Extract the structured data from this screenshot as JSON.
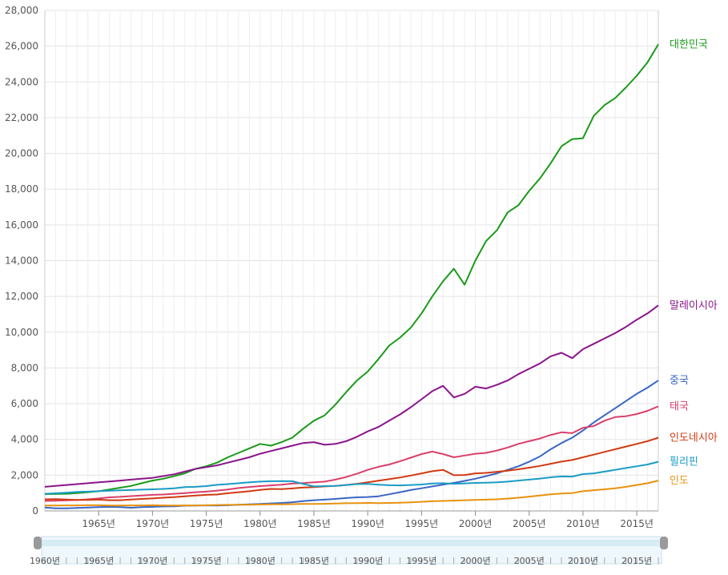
{
  "chart_data": {
    "type": "line",
    "title": "",
    "xlabel": "",
    "ylabel": "",
    "ylim": [
      0,
      28000
    ],
    "yticks": [
      0,
      2000,
      4000,
      6000,
      8000,
      10000,
      12000,
      14000,
      16000,
      18000,
      20000,
      22000,
      24000,
      26000,
      28000
    ],
    "ytick_labels": [
      "0",
      "2,000",
      "4,000",
      "6,000",
      "8,000",
      "10,000",
      "12,000",
      "14,000",
      "16,000",
      "18,000",
      "20,000",
      "22,000",
      "24,000",
      "26,000",
      "28,000"
    ],
    "xlim": [
      1960,
      2017
    ],
    "xticks": [
      1965,
      1970,
      1975,
      1980,
      1985,
      1990,
      1995,
      2000,
      2005,
      2010,
      2015
    ],
    "xtick_labels": [
      "1965년",
      "1970년",
      "1975년",
      "1980년",
      "1985년",
      "1990년",
      "1995년",
      "2000년",
      "2005년",
      "2010년",
      "2015년"
    ],
    "grid": true,
    "legend": "inline-right",
    "range_selector": {
      "start_label": "1960년",
      "tick_labels": [
        "1965년",
        "1970년",
        "1975년",
        "1980년",
        "1985년",
        "1990년",
        "1995년",
        "2000년",
        "2005년",
        "2010년",
        "2015년"
      ]
    },
    "x": [
      1960,
      1961,
      1962,
      1963,
      1964,
      1965,
      1966,
      1967,
      1968,
      1969,
      1970,
      1971,
      1972,
      1973,
      1974,
      1975,
      1976,
      1977,
      1978,
      1979,
      1980,
      1981,
      1982,
      1983,
      1984,
      1985,
      1986,
      1987,
      1988,
      1989,
      1990,
      1991,
      1992,
      1993,
      1994,
      1995,
      1996,
      1997,
      1998,
      1999,
      2000,
      2001,
      2002,
      2003,
      2004,
      2005,
      2006,
      2007,
      2008,
      2009,
      2010,
      2011,
      2012,
      2013,
      2014,
      2015,
      2016,
      2017
    ],
    "series": [
      {
        "name": "대한민국",
        "color": "#1a9a1a",
        "values": [
          940,
          950,
          960,
          1000,
          1050,
          1100,
          1200,
          1300,
          1400,
          1550,
          1700,
          1800,
          1950,
          2100,
          2350,
          2500,
          2700,
          3000,
          3250,
          3500,
          3750,
          3650,
          3850,
          4100,
          4600,
          5050,
          5350,
          5950,
          6650,
          7300,
          7800,
          8500,
          9250,
          9700,
          10250,
          11050,
          12000,
          12850,
          13550,
          12650,
          14000,
          15100,
          15700,
          16700,
          17100,
          17900,
          18600,
          19450,
          20400,
          20800,
          20850,
          22100,
          22700,
          23100,
          23700,
          24350,
          25100,
          26100
        ]
      },
      {
        "name": "말레이시아",
        "color": "#8b148b",
        "values": [
          1350,
          1400,
          1450,
          1500,
          1550,
          1600,
          1650,
          1700,
          1750,
          1800,
          1850,
          1950,
          2050,
          2200,
          2350,
          2450,
          2550,
          2700,
          2850,
          3000,
          3200,
          3350,
          3500,
          3650,
          3800,
          3850,
          3700,
          3750,
          3900,
          4150,
          4450,
          4700,
          5050,
          5400,
          5800,
          6250,
          6700,
          7000,
          6350,
          6550,
          6950,
          6850,
          7050,
          7300,
          7650,
          7950,
          8250,
          8650,
          8850,
          8550,
          9050,
          9350,
          9650,
          9950,
          10300,
          10700,
          11050,
          11500
        ]
      },
      {
        "name": "중국",
        "color": "#3a66c4",
        "values": [
          190,
          150,
          150,
          170,
          190,
          210,
          230,
          210,
          180,
          210,
          230,
          250,
          260,
          290,
          300,
          310,
          300,
          320,
          350,
          370,
          390,
          420,
          450,
          490,
          550,
          600,
          630,
          670,
          720,
          760,
          780,
          820,
          930,
          1050,
          1170,
          1270,
          1370,
          1470,
          1570,
          1680,
          1800,
          1950,
          2100,
          2300,
          2500,
          2750,
          3050,
          3450,
          3800,
          4100,
          4500,
          4950,
          5350,
          5750,
          6150,
          6550,
          6900,
          7300
        ]
      },
      {
        "name": "태국",
        "color": "#d9406a",
        "values": [
          560,
          570,
          590,
          610,
          650,
          700,
          760,
          790,
          830,
          860,
          900,
          920,
          960,
          1000,
          1050,
          1080,
          1140,
          1200,
          1280,
          1340,
          1390,
          1430,
          1470,
          1530,
          1560,
          1600,
          1640,
          1750,
          1900,
          2080,
          2300,
          2470,
          2600,
          2780,
          2980,
          3180,
          3320,
          3180,
          3000,
          3100,
          3200,
          3250,
          3380,
          3550,
          3750,
          3900,
          4050,
          4250,
          4400,
          4350,
          4650,
          4750,
          5050,
          5250,
          5300,
          5420,
          5600,
          5850
        ]
      },
      {
        "name": "인도네시아",
        "color": "#d13a12",
        "values": [
          650,
          660,
          640,
          620,
          620,
          630,
          600,
          600,
          640,
          670,
          700,
          740,
          770,
          820,
          860,
          900,
          920,
          990,
          1050,
          1100,
          1180,
          1230,
          1220,
          1260,
          1310,
          1330,
          1370,
          1400,
          1450,
          1520,
          1600,
          1690,
          1780,
          1870,
          1980,
          2100,
          2220,
          2300,
          2000,
          2010,
          2100,
          2130,
          2190,
          2250,
          2330,
          2420,
          2520,
          2640,
          2760,
          2850,
          3000,
          3150,
          3300,
          3450,
          3600,
          3750,
          3900,
          4100
        ]
      },
      {
        "name": "필리핀",
        "color": "#1a9cc4",
        "values": [
          960,
          990,
          1020,
          1060,
          1080,
          1110,
          1130,
          1150,
          1170,
          1190,
          1210,
          1230,
          1270,
          1330,
          1350,
          1390,
          1460,
          1500,
          1550,
          1600,
          1640,
          1660,
          1670,
          1660,
          1510,
          1370,
          1390,
          1400,
          1450,
          1500,
          1510,
          1470,
          1440,
          1430,
          1450,
          1480,
          1530,
          1550,
          1520,
          1540,
          1570,
          1580,
          1600,
          1640,
          1700,
          1750,
          1810,
          1880,
          1930,
          1920,
          2060,
          2100,
          2200,
          2300,
          2400,
          2500,
          2600,
          2750
        ]
      },
      {
        "name": "인도",
        "color": "#e8920f",
        "values": [
          300,
          300,
          310,
          310,
          320,
          320,
          300,
          300,
          310,
          310,
          320,
          310,
          300,
          310,
          300,
          320,
          330,
          340,
          350,
          350,
          360,
          370,
          370,
          380,
          390,
          390,
          400,
          410,
          430,
          440,
          450,
          440,
          450,
          460,
          480,
          510,
          540,
          560,
          580,
          600,
          620,
          630,
          650,
          690,
          740,
          800,
          860,
          930,
          970,
          1000,
          1100,
          1160,
          1210,
          1270,
          1350,
          1450,
          1550,
          1700
        ]
      }
    ]
  }
}
